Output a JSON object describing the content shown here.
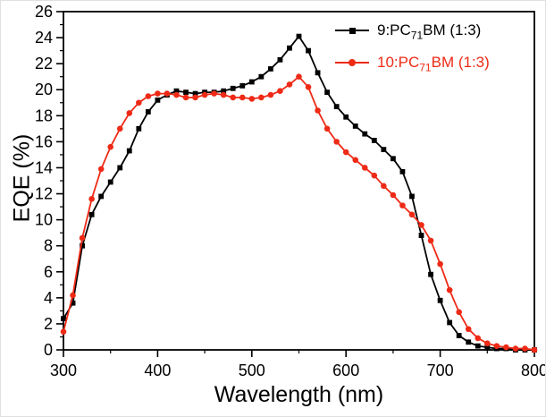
{
  "chart_data": {
    "type": "line",
    "title": "",
    "xlabel": "Wavelength (nm)",
    "ylabel": "EQE (%)",
    "xlim": [
      300,
      800
    ],
    "ylim": [
      0,
      26
    ],
    "x_ticks": [
      300,
      400,
      500,
      600,
      700,
      800
    ],
    "x_minor_ticks": [
      350,
      450,
      550,
      650,
      750
    ],
    "y_ticks": [
      0,
      2,
      4,
      6,
      8,
      10,
      12,
      14,
      16,
      18,
      20,
      22,
      24,
      26
    ],
    "y_minor_ticks": [
      1,
      3,
      5,
      7,
      9,
      11,
      13,
      15,
      17,
      19,
      21,
      23,
      25
    ],
    "grid": false,
    "legend_position": "top-right",
    "x": [
      300,
      310,
      320,
      330,
      340,
      350,
      360,
      370,
      380,
      390,
      400,
      410,
      420,
      430,
      440,
      450,
      460,
      470,
      480,
      490,
      500,
      510,
      520,
      530,
      540,
      550,
      560,
      570,
      580,
      590,
      600,
      610,
      620,
      630,
      640,
      650,
      660,
      670,
      680,
      690,
      700,
      710,
      720,
      730,
      740,
      750,
      760,
      770,
      780,
      790,
      800
    ],
    "series": [
      {
        "name": "9:PC71BM (1:3)",
        "label_parts": {
          "pre": "9:PC",
          "sub": "71",
          "post": "BM (1:3)"
        },
        "color": "#000000",
        "marker": "square",
        "values": [
          2.4,
          3.6,
          8.0,
          10.4,
          11.8,
          12.9,
          14.0,
          15.3,
          17.0,
          18.3,
          19.2,
          19.6,
          19.9,
          19.8,
          19.7,
          19.8,
          19.8,
          19.9,
          20.1,
          20.3,
          20.6,
          21.0,
          21.6,
          22.3,
          23.2,
          24.1,
          23.0,
          21.3,
          19.8,
          18.7,
          17.9,
          17.2,
          16.6,
          16.1,
          15.4,
          14.7,
          13.7,
          11.8,
          8.8,
          5.8,
          3.8,
          2.1,
          1.1,
          0.6,
          0.3,
          0.2,
          0.1,
          0.1,
          0.0,
          0.0,
          0.0
        ]
      },
      {
        "name": "10:PC71BM (1:3)",
        "label_parts": {
          "pre": "10:PC",
          "sub": "71",
          "post": "BM (1:3)"
        },
        "color": "#ee2a16",
        "marker": "circle",
        "values": [
          1.4,
          4.2,
          8.6,
          11.6,
          13.9,
          15.6,
          17.0,
          18.2,
          19.0,
          19.5,
          19.7,
          19.7,
          19.6,
          19.4,
          19.4,
          19.6,
          19.7,
          19.6,
          19.4,
          19.4,
          19.3,
          19.4,
          19.6,
          19.9,
          20.4,
          21.0,
          20.2,
          18.4,
          17.0,
          16.0,
          15.2,
          14.6,
          14.0,
          13.4,
          12.6,
          11.9,
          11.1,
          10.4,
          9.6,
          8.4,
          6.6,
          4.6,
          2.9,
          1.6,
          0.9,
          0.5,
          0.3,
          0.2,
          0.1,
          0.1,
          0.0
        ]
      }
    ]
  }
}
